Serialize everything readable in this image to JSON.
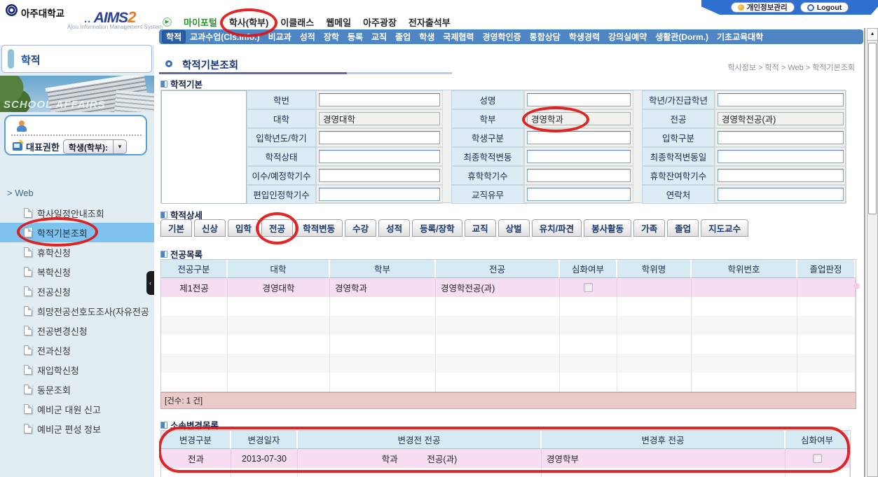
{
  "brand": {
    "university": "아주대학교",
    "aims_dots": "..",
    "aims_word": "AIMS",
    "aims_two": "2",
    "subtitle": "Ajou Information Management System"
  },
  "topnav": {
    "items": [
      {
        "label": "마이포털",
        "accent": true,
        "annotated": false
      },
      {
        "label": "학사(학부)",
        "accent": false,
        "annotated": true
      },
      {
        "label": "이클래스",
        "accent": false,
        "annotated": false
      },
      {
        "label": "웹메일",
        "accent": false,
        "annotated": false
      },
      {
        "label": "아주광장",
        "accent": false,
        "annotated": false
      },
      {
        "label": "전자출석부",
        "accent": false,
        "annotated": false
      }
    ],
    "personal_info": "개인정보관리",
    "logout": "Logout"
  },
  "menubar": {
    "items": [
      "학적",
      "교과수업(Cls.Info.)",
      "비교과",
      "성적",
      "장학",
      "등록",
      "교직",
      "졸업",
      "학생",
      "국제협력",
      "경영학인증",
      "통합상담",
      "학생경력",
      "강의실예약",
      "생활관(Dorm.)",
      "기초교육대학"
    ],
    "selected": "학적"
  },
  "sidebar": {
    "module_title": "학적",
    "banner_caption": "SCHOOL AFFAIRS",
    "role_label": "대표권한",
    "role_value": "학생(학부):",
    "dropdown_arrow": "▼",
    "group_label": "Web",
    "items": [
      "학사일정안내조회",
      "학적기본조회",
      "휴학신청",
      "복학신청",
      "전공신청",
      "희망전공선호도조사(자유전공",
      "전공변경신청",
      "전과신청",
      "재입학신청",
      "동문조회",
      "예비군 대원 신고",
      "예비군 편성 정보"
    ],
    "selected": "학적기본조회"
  },
  "page": {
    "title": "학적기본조회",
    "breadcrumb": "학사정보 > 학적 > Web > 학적기본조회"
  },
  "basic": {
    "section_title": "학적기본",
    "fields": [
      {
        "label": "학번",
        "value": "",
        "readonly": false,
        "annotated": false
      },
      {
        "label": "성명",
        "value": "",
        "readonly": false,
        "annotated": false
      },
      {
        "label": "학년/가진급학년",
        "value": "",
        "readonly": false,
        "annotated": false
      },
      {
        "label": "대학",
        "value": "경영대학",
        "readonly": true,
        "annotated": false
      },
      {
        "label": "학부",
        "value": "경영학과",
        "readonly": true,
        "annotated": true
      },
      {
        "label": "전공",
        "value": "경영학전공(과)",
        "readonly": true,
        "annotated": false
      },
      {
        "label": "입학년도/학기",
        "value": "",
        "readonly": false,
        "annotated": false
      },
      {
        "label": "학생구분",
        "value": "",
        "readonly": false,
        "annotated": false
      },
      {
        "label": "입학구분",
        "value": "",
        "readonly": false,
        "annotated": false
      },
      {
        "label": "학적상태",
        "value": "",
        "readonly": false,
        "annotated": false
      },
      {
        "label": "최종학적변동",
        "value": "",
        "readonly": false,
        "annotated": false
      },
      {
        "label": "최종학적변동일",
        "value": "",
        "readonly": false,
        "annotated": false
      },
      {
        "label": "이수/예정학기수",
        "value": "",
        "readonly": false,
        "annotated": false
      },
      {
        "label": "휴학학기수",
        "value": "",
        "readonly": false,
        "annotated": false
      },
      {
        "label": "휴학잔여학기수",
        "value": "",
        "readonly": false,
        "annotated": false
      },
      {
        "label": "편입인정학기수",
        "value": "",
        "readonly": false,
        "annotated": false
      },
      {
        "label": "교직유무",
        "value": "",
        "readonly": false,
        "annotated": false
      },
      {
        "label": "연락처",
        "value": "",
        "readonly": false,
        "annotated": false
      }
    ]
  },
  "detail": {
    "section_title": "학적상세",
    "tabs": [
      "기본",
      "신상",
      "입학",
      "전공",
      "학적변동",
      "수강",
      "성적",
      "등록/장학",
      "교직",
      "상벌",
      "유치/파견",
      "봉사활동",
      "가족",
      "졸업",
      "지도교수"
    ],
    "annotated_tab": "전공"
  },
  "majors": {
    "section_title": "전공목록",
    "columns": [
      "전공구분",
      "대학",
      "학부",
      "전공",
      "심화여부",
      "학위명",
      "학위번호",
      "졸업판정"
    ],
    "rows": [
      [
        "제1전공",
        "경영대학",
        "경영학과",
        "경영학전공(과)",
        "checkbox",
        "",
        "",
        ""
      ]
    ],
    "empty_row_count": 5,
    "count_label": "[건수: 1 건]"
  },
  "changes": {
    "section_title": "소속변경목록",
    "columns": [
      "변경구분",
      "변경일자",
      "변경전 전공",
      "변경후 전공",
      "심화여부"
    ],
    "rows": [
      [
        "전과",
        "2013-07-30",
        "학과            전공(과)",
        "경영학부",
        "checkbox"
      ]
    ]
  },
  "colors": {
    "annotation_red": "#df1212",
    "menubar_blue": "#4e86c5",
    "menubar_selected": "#2c5fa5",
    "sidebar_highlight": "#7ec2ee",
    "table_header_blue": "#d5eaf3",
    "row_pink": "#f7ddf2",
    "count_bar_pink": "#ebcaca"
  }
}
